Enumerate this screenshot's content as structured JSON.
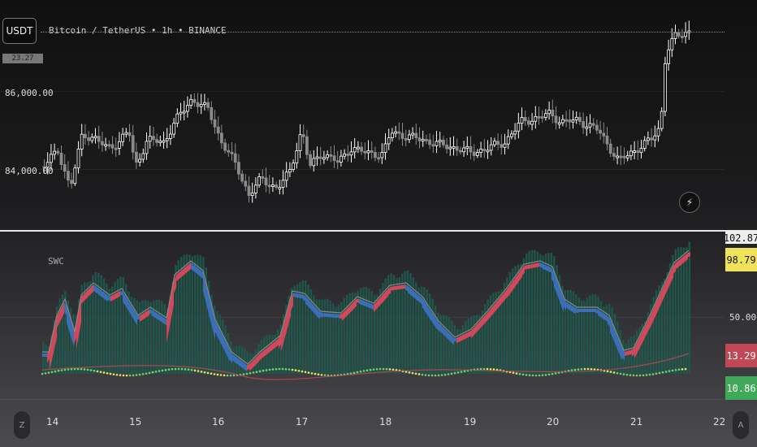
{
  "header": {
    "symbol_button": "USDT",
    "title": "Bitcoin / TetherUS • 1h • BINANCE",
    "last_price_tag": "23.27"
  },
  "price_axis": {
    "labels": [
      "86,000.00",
      "84,000.00"
    ]
  },
  "indicator": {
    "name": "SWC",
    "axis_label": "50.00",
    "badges": {
      "top": "102.87",
      "yellow": "98.79",
      "red": "13.29",
      "green": "10.86"
    }
  },
  "time_axis": {
    "labels": [
      "14",
      "15",
      "16",
      "17",
      "18",
      "19",
      "20",
      "21",
      "22"
    ]
  },
  "controls": {
    "left_corner": "Z",
    "right_corner": "A",
    "replay_icon": "lightning-icon"
  },
  "colors": {
    "candle_up": "#ffffff",
    "candle_down": "#8a8a8a",
    "wave_up": "#d0485a",
    "wave_down": "#3a6fb8",
    "histogram": "#1f5a4e",
    "badge_yellow": "#f0e35a",
    "badge_red": "#c24858",
    "badge_green": "#3fa859"
  }
}
